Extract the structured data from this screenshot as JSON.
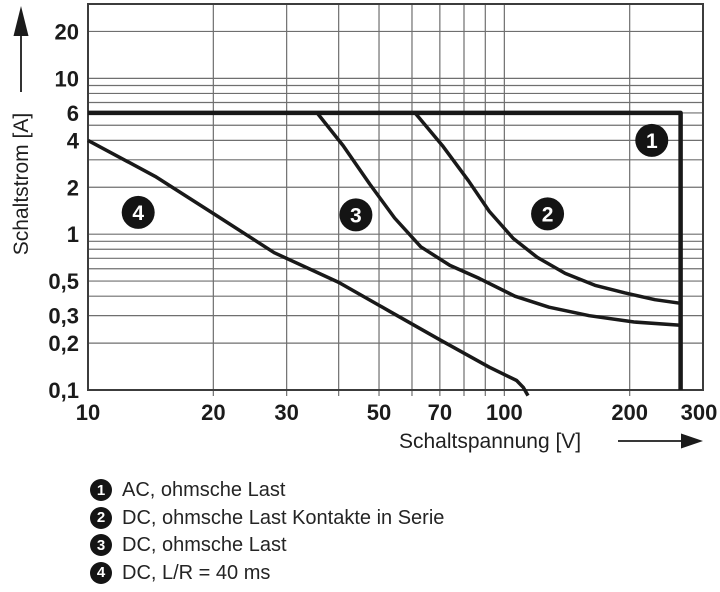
{
  "figure": {
    "x_axis_title": "Schaltspannung [V]",
    "y_axis_title": "Schaltstrom [A]"
  },
  "chart_data": {
    "type": "line",
    "title": "",
    "xlabel": "Schaltspannung [V]",
    "ylabel": "Schaltstrom [A]",
    "x_scale": "log",
    "y_scale": "log",
    "xlim": [
      10,
      300
    ],
    "ylim": [
      0.1,
      30
    ],
    "grid": true,
    "x_ticks": [
      {
        "v": 10,
        "label": "10"
      },
      {
        "v": 20,
        "label": "20"
      },
      {
        "v": 30,
        "label": "30"
      },
      {
        "v": 50,
        "label": "50"
      },
      {
        "v": 70,
        "label": "70"
      },
      {
        "v": 100,
        "label": "100"
      },
      {
        "v": 200,
        "label": "200"
      },
      {
        "v": 300,
        "label": "300"
      }
    ],
    "y_ticks": [
      {
        "v": 20,
        "label": "20"
      },
      {
        "v": 10,
        "label": "10"
      },
      {
        "v": 6,
        "label": "6"
      },
      {
        "v": 4,
        "label": "4"
      },
      {
        "v": 2,
        "label": "2"
      },
      {
        "v": 1,
        "label": "1"
      },
      {
        "v": 0.5,
        "label": "0,5"
      },
      {
        "v": 0.3,
        "label": "0,3"
      },
      {
        "v": 0.2,
        "label": "0,2"
      },
      {
        "v": 0.1,
        "label": "0,1"
      }
    ],
    "x_gridlines": [
      20,
      30,
      40,
      50,
      60,
      70,
      80,
      90,
      100,
      200
    ],
    "y_gridlines": [
      20,
      10,
      9,
      8,
      7,
      6,
      5,
      4,
      3,
      2,
      1,
      0.9,
      0.8,
      0.7,
      0.6,
      0.5,
      0.4,
      0.3,
      0.2
    ],
    "series": [
      {
        "id": 1,
        "name": "AC, ohmsche Last",
        "points": [
          [
            10,
            6
          ],
          [
            265,
            6
          ],
          [
            265,
            0.1
          ]
        ]
      },
      {
        "id": 2,
        "name": "DC, ohmsche Last Kontakte in Serie",
        "points": [
          [
            61,
            6
          ],
          [
            71,
            3.7
          ],
          [
            82,
            2.2
          ],
          [
            92,
            1.4
          ],
          [
            105,
            0.94
          ],
          [
            120,
            0.71
          ],
          [
            140,
            0.56
          ],
          [
            165,
            0.47
          ],
          [
            195,
            0.42
          ],
          [
            230,
            0.38
          ],
          [
            265,
            0.36
          ]
        ]
      },
      {
        "id": 3,
        "name": "DC, ohmsche Last",
        "points": [
          [
            35.5,
            6
          ],
          [
            41,
            3.7
          ],
          [
            47.5,
            2.1
          ],
          [
            54.5,
            1.27
          ],
          [
            63,
            0.83
          ],
          [
            74,
            0.63
          ],
          [
            87,
            0.52
          ],
          [
            106,
            0.4
          ],
          [
            128,
            0.34
          ],
          [
            160,
            0.3
          ],
          [
            205,
            0.273
          ],
          [
            265,
            0.26
          ]
        ]
      },
      {
        "id": 4,
        "name": "DC, L/R = 40 ms",
        "points": [
          [
            10,
            4
          ],
          [
            14.5,
            2.35
          ],
          [
            20.5,
            1.3
          ],
          [
            28,
            0.76
          ],
          [
            40,
            0.49
          ],
          [
            53,
            0.32
          ],
          [
            70,
            0.21
          ],
          [
            92,
            0.14
          ],
          [
            107,
            0.115
          ],
          [
            111,
            0.104
          ],
          [
            114,
            0.092
          ]
        ]
      }
    ],
    "markers": [
      {
        "label": "1",
        "v": 226,
        "a": 4
      },
      {
        "label": "2",
        "v": 127,
        "a": 1.35
      },
      {
        "label": "3",
        "v": 44,
        "a": 1.33
      },
      {
        "label": "4",
        "v": 13.2,
        "a": 1.38
      }
    ],
    "colors": {
      "curve": "#191919",
      "grid": "#6f6f6f",
      "frame": "#3c3c3c",
      "text": "#1b1b1b",
      "marker_fill": "#141414",
      "marker_text": "#ffffff",
      "background": "#ffffff"
    }
  },
  "legend": {
    "items": [
      {
        "num": "1",
        "text": "AC, ohmsche Last"
      },
      {
        "num": "2",
        "text": "DC, ohmsche Last Kontakte in Serie"
      },
      {
        "num": "3",
        "text": "DC, ohmsche Last"
      },
      {
        "num": "4",
        "text": "DC, L/R = 40 ms"
      }
    ]
  }
}
